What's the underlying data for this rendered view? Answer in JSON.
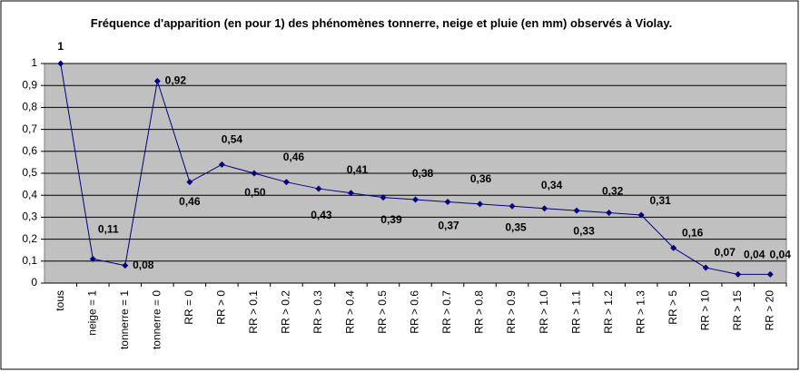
{
  "chart_data": {
    "type": "line",
    "title": "Fréquence d'apparition (en pour 1) des  phénomènes tonnerre, neige et pluie (en mm)  observés à Violay.",
    "categories": [
      "tous",
      "neige = 1",
      "tonnerre = 1",
      "tonnerre = 0",
      "RR = 0",
      "RR > 0",
      "RR > 0.1",
      "RR > 0.2",
      "RR > 0.3",
      "RR > 0.4",
      "RR > 0.5",
      "RR > 0.6",
      "RR > 0.7",
      "RR > 0.8",
      "RR > 0.9",
      "RR > 1.0",
      "RR > 1.1",
      "RR > 1.2",
      "RR > 1.3",
      "RR > 5",
      "RR > 10",
      "RR > 15",
      "RR > 20"
    ],
    "values": [
      1,
      0.11,
      0.08,
      0.92,
      0.46,
      0.54,
      0.5,
      0.46,
      0.43,
      0.41,
      0.39,
      0.38,
      0.37,
      0.36,
      0.35,
      0.34,
      0.33,
      0.32,
      0.31,
      0.16,
      0.07,
      0.04,
      0.04
    ],
    "value_labels": [
      "1",
      "0,11",
      "0,08",
      "0,92",
      "0,46",
      "0,54",
      "0,50",
      "0,46",
      "0,43",
      "0,41",
      "0,39",
      "0,38",
      "0,37",
      "0,36",
      "0,35",
      "0,34",
      "0,33",
      "0,32",
      "0,31",
      "0,16",
      "0,07",
      "0,04",
      "0,04"
    ],
    "color": "#000080",
    "ylim": [
      0,
      1
    ],
    "yticks": [
      0,
      {
        "value": 0.1,
        "label": "0,1"
      },
      {
        "value": 0.2,
        "label": "0,2"
      },
      {
        "value": 0.3,
        "label": "0,3"
      },
      {
        "value": 0.4,
        "label": "0,4"
      },
      {
        "value": 0.5,
        "label": "0,5"
      },
      {
        "value": 0.6,
        "label": "0,6"
      },
      {
        "value": 0.7,
        "label": "0,7"
      },
      {
        "value": 0.8,
        "label": "0,8"
      },
      {
        "value": 0.9,
        "label": "0,9"
      },
      1
    ],
    "grid": true
  }
}
